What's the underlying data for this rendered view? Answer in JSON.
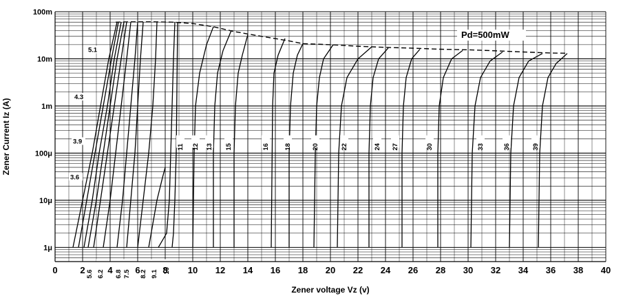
{
  "chart_data": {
    "type": "line",
    "title": "",
    "xlabel": "Zener voltage Vz (v)",
    "ylabel": "Zener Current  Iz (A)",
    "xlim": [
      0,
      40
    ],
    "ylim": [
      5e-07,
      0.1
    ],
    "y_scale": "log",
    "grid": true,
    "x_ticks": [
      0,
      2,
      4,
      6,
      8,
      10,
      12,
      14,
      16,
      18,
      20,
      22,
      24,
      26,
      28,
      30,
      32,
      34,
      36,
      38,
      40
    ],
    "y_ticks": [
      {
        "value": 1e-06,
        "label": "1μ"
      },
      {
        "value": 1e-05,
        "label": "10μ"
      },
      {
        "value": 0.0001,
        "label": "100μ"
      },
      {
        "value": 0.001,
        "label": "1m"
      },
      {
        "value": 0.01,
        "label": "10m"
      },
      {
        "value": 0.1,
        "label": "100m"
      }
    ],
    "annotation": "Pd=500mW",
    "power_limit_curve": {
      "x": [
        4.4,
        5.5,
        7.0,
        8.5,
        10.0,
        11.5,
        13.0,
        15.0,
        17.0,
        18.0,
        20.0,
        22.0,
        24.0,
        26.0,
        28.0,
        30.0,
        32.0,
        34.0,
        36.0,
        37.2
      ],
      "y": [
        0.06,
        0.061,
        0.061,
        0.06,
        0.056,
        0.048,
        0.038,
        0.03,
        0.024,
        0.021,
        0.02,
        0.0185,
        0.0175,
        0.0168,
        0.016,
        0.0155,
        0.0148,
        0.014,
        0.0133,
        0.0131
      ]
    },
    "series": [
      {
        "name": "3.6",
        "x": [
          1.3,
          2.0,
          2.7,
          3.3,
          3.9,
          4.5
        ],
        "y": [
          1e-06,
          1e-05,
          0.0001,
          0.001,
          0.01,
          0.06
        ]
      },
      {
        "name": "3.9",
        "x": [
          1.7,
          2.3,
          2.9,
          3.5,
          4.1,
          4.6
        ],
        "y": [
          1e-06,
          1e-05,
          0.0001,
          0.001,
          0.01,
          0.06
        ]
      },
      {
        "name": "4.3",
        "x": [
          2.1,
          2.7,
          3.2,
          3.8,
          4.3,
          4.8
        ],
        "y": [
          1e-06,
          1e-05,
          0.0001,
          0.001,
          0.01,
          0.06
        ]
      },
      {
        "name": "5.1",
        "x": [
          2.4,
          3.0,
          3.5,
          4.0,
          4.5,
          5.0
        ],
        "y": [
          1e-06,
          1e-05,
          0.0001,
          0.001,
          0.01,
          0.06
        ]
      },
      {
        "name": "5.6",
        "x": [
          2.8,
          3.3,
          3.8,
          4.3,
          4.8,
          5.2
        ],
        "y": [
          1e-06,
          1e-05,
          0.0001,
          0.001,
          0.01,
          0.06
        ]
      },
      {
        "name": "6.2",
        "x": [
          3.5,
          4.0,
          4.4,
          4.8,
          5.2,
          5.5
        ],
        "y": [
          1e-06,
          1e-05,
          0.0001,
          0.001,
          0.01,
          0.06
        ]
      },
      {
        "name": "6.8",
        "x": [
          4.5,
          4.9,
          5.2,
          5.5,
          5.8,
          6.0
        ],
        "y": [
          1e-06,
          1e-05,
          0.0001,
          0.001,
          0.01,
          0.06
        ]
      },
      {
        "name": "7.5",
        "x": [
          5.2,
          5.5,
          5.8,
          6.0,
          6.2,
          6.4
        ],
        "y": [
          1e-06,
          1e-05,
          0.0001,
          0.001,
          0.01,
          0.06
        ]
      },
      {
        "name": "8.2",
        "x": [
          6.0,
          6.4,
          6.8,
          7.1,
          7.3,
          7.4
        ],
        "y": [
          1e-06,
          1e-05,
          0.0001,
          0.001,
          0.01,
          0.06
        ]
      },
      {
        "name": "9.1",
        "x": [
          6.8,
          7.4,
          7.8,
          8.0
        ],
        "y": [
          1e-06,
          1e-05,
          3e-05,
          5e-05
        ]
      },
      {
        "name": "10",
        "x": [
          7.5,
          8.1,
          8.3,
          8.4,
          8.5,
          8.6,
          8.7
        ],
        "y": [
          1e-06,
          2e-06,
          1e-05,
          0.0001,
          0.001,
          0.01,
          0.06
        ]
      },
      {
        "name": "11",
        "x": [
          8.5,
          8.6,
          8.7,
          8.8,
          8.9
        ],
        "y": [
          1e-06,
          2e-06,
          1e-05,
          0.0001,
          0.06
        ]
      },
      {
        "name": "12",
        "x": [
          10.0,
          10.1,
          10.2,
          10.5,
          11.0,
          11.5
        ],
        "y": [
          1e-06,
          0.0001,
          0.001,
          0.005,
          0.02,
          0.048
        ]
      },
      {
        "name": "13",
        "x": [
          11.5,
          11.5,
          11.6,
          11.8,
          12.2,
          12.8
        ],
        "y": [
          1e-06,
          0.0001,
          0.001,
          0.005,
          0.015,
          0.04
        ]
      },
      {
        "name": "15",
        "x": [
          13.0,
          13.0,
          13.1,
          13.3,
          13.6,
          14.0
        ],
        "y": [
          1e-06,
          0.0001,
          0.001,
          0.005,
          0.012,
          0.033
        ]
      },
      {
        "name": "16",
        "x": [
          15.7,
          15.8,
          15.9,
          16.2,
          16.7
        ],
        "y": [
          1e-06,
          0.001,
          0.005,
          0.012,
          0.027
        ]
      },
      {
        "name": "18",
        "x": [
          17.0,
          17.0,
          17.1,
          17.3,
          17.6,
          18.0
        ],
        "y": [
          1e-06,
          0.0001,
          0.001,
          0.005,
          0.012,
          0.021
        ]
      },
      {
        "name": "20",
        "x": [
          18.8,
          18.9,
          19.0,
          19.2,
          19.5,
          20.2
        ],
        "y": [
          1e-06,
          0.0001,
          0.001,
          0.004,
          0.01,
          0.02
        ]
      },
      {
        "name": "22",
        "x": [
          20.5,
          20.6,
          20.8,
          21.2,
          22.0,
          23.0
        ],
        "y": [
          1e-06,
          0.0001,
          0.001,
          0.004,
          0.01,
          0.018
        ]
      },
      {
        "name": "24",
        "x": [
          22.8,
          22.8,
          22.9,
          23.1,
          23.5,
          24.2
        ],
        "y": [
          1e-06,
          0.0001,
          0.001,
          0.004,
          0.01,
          0.017
        ]
      },
      {
        "name": "27",
        "x": [
          25.2,
          25.2,
          25.3,
          25.5,
          25.9,
          26.5
        ],
        "y": [
          1e-06,
          0.0001,
          0.001,
          0.004,
          0.01,
          0.016
        ]
      },
      {
        "name": "30",
        "x": [
          27.8,
          27.8,
          27.9,
          28.2,
          28.8,
          29.6
        ],
        "y": [
          1e-06,
          0.0001,
          0.001,
          0.004,
          0.01,
          0.015
        ]
      },
      {
        "name": "33",
        "x": [
          30.2,
          30.3,
          30.5,
          30.9,
          31.6,
          32.5
        ],
        "y": [
          1e-06,
          0.0001,
          0.001,
          0.004,
          0.009,
          0.014
        ]
      },
      {
        "name": "36",
        "x": [
          33.0,
          33.1,
          33.3,
          33.7,
          34.4,
          35.4
        ],
        "y": [
          1e-06,
          0.0001,
          0.001,
          0.004,
          0.009,
          0.013
        ]
      },
      {
        "name": "39",
        "x": [
          35.1,
          35.2,
          35.4,
          35.8,
          36.4,
          37.2
        ],
        "y": [
          1e-06,
          0.0001,
          0.001,
          0.004,
          0.008,
          0.013
        ]
      }
    ],
    "curve_labels": [
      {
        "text": "3.6",
        "x": 1.1,
        "y": 2.8e-05
      },
      {
        "text": "3.9",
        "x": 1.3,
        "y": 0.00016
      },
      {
        "text": "4.3",
        "x": 1.4,
        "y": 0.0014
      },
      {
        "text": "5.1",
        "x": 2.4,
        "y": 0.014
      },
      {
        "text": "5.6",
        "x": 2.5,
        "y": 4e-07
      },
      {
        "text": "6.2",
        "x": 3.3,
        "y": 4e-07
      },
      {
        "text": "6.8",
        "x": 4.6,
        "y": 4e-07
      },
      {
        "text": "7.5",
        "x": 5.2,
        "y": 4e-07
      },
      {
        "text": "8.2",
        "x": 6.4,
        "y": 4e-07
      },
      {
        "text": "9.1",
        "x": 7.2,
        "y": 4e-07
      },
      {
        "text": "10",
        "x": 8.1,
        "y": 4e-07
      },
      {
        "text": "11",
        "x": 9.1,
        "y": 0.00017
      },
      {
        "text": "12",
        "x": 10.2,
        "y": 0.00017
      },
      {
        "text": "13",
        "x": 11.2,
        "y": 0.00017
      },
      {
        "text": "15",
        "x": 12.6,
        "y": 0.00017
      },
      {
        "text": "16",
        "x": 15.3,
        "y": 0.00017
      },
      {
        "text": "18",
        "x": 16.9,
        "y": 0.00017
      },
      {
        "text": "20",
        "x": 18.9,
        "y": 0.00017
      },
      {
        "text": "22",
        "x": 21.0,
        "y": 0.00017
      },
      {
        "text": "24",
        "x": 23.4,
        "y": 0.00017
      },
      {
        "text": "27",
        "x": 24.7,
        "y": 0.00017
      },
      {
        "text": "30",
        "x": 27.2,
        "y": 0.00017
      },
      {
        "text": "33",
        "x": 30.9,
        "y": 0.00017
      },
      {
        "text": "36",
        "x": 32.8,
        "y": 0.00017
      },
      {
        "text": "39",
        "x": 34.9,
        "y": 0.00017
      }
    ]
  }
}
